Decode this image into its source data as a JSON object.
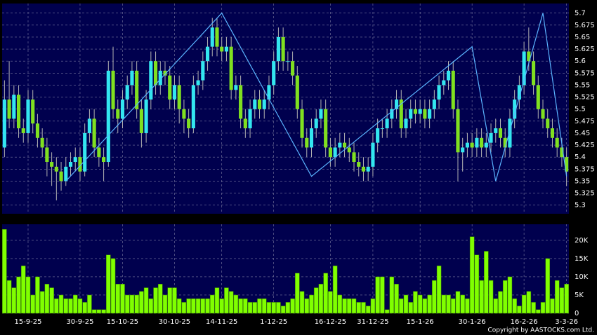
{
  "chart_data": {
    "type": "candlestick",
    "up_color": "#33e6f0",
    "down_color": "#80e020",
    "wick_color": "#b0b0b0",
    "grid": true,
    "categories": [
      null,
      null,
      null,
      null,
      null,
      "15-9-25",
      null,
      null,
      null,
      null,
      null,
      null,
      null,
      null,
      null,
      null,
      "30-9-25",
      null,
      null,
      null,
      null,
      null,
      null,
      null,
      null,
      "15-10-25",
      null,
      null,
      null,
      null,
      null,
      null,
      null,
      null,
      null,
      null,
      "30-10-25",
      null,
      null,
      null,
      null,
      null,
      null,
      null,
      null,
      null,
      "14-11-25",
      null,
      null,
      null,
      null,
      null,
      null,
      null,
      null,
      null,
      null,
      "1-12-25",
      null,
      null,
      null,
      null,
      null,
      null,
      null,
      null,
      null,
      null,
      null,
      "16-12-25",
      null,
      null,
      null,
      null,
      null,
      null,
      null,
      null,
      "31-12-25",
      null,
      null,
      null,
      null,
      null,
      null,
      null,
      null,
      null,
      "15-1-26",
      null,
      null,
      null,
      null,
      null,
      null,
      null,
      null,
      null,
      null,
      "30-1-26",
      null,
      null,
      null,
      null,
      null,
      null,
      null,
      null,
      null,
      null,
      "16-2-26",
      null,
      null,
      null,
      null,
      null,
      null,
      null,
      null,
      "3-3-26"
    ],
    "candles": [
      [
        5.42,
        5.56,
        5.4,
        5.52
      ],
      [
        5.52,
        5.6,
        5.46,
        5.48
      ],
      [
        5.48,
        5.55,
        5.46,
        5.53
      ],
      [
        5.53,
        5.55,
        5.44,
        5.46
      ],
      [
        5.46,
        5.48,
        5.43,
        5.45
      ],
      [
        5.45,
        5.54,
        5.43,
        5.52
      ],
      [
        5.52,
        5.54,
        5.45,
        5.47
      ],
      [
        5.47,
        5.49,
        5.42,
        5.44
      ],
      [
        5.44,
        5.46,
        5.4,
        5.42
      ],
      [
        5.42,
        5.44,
        5.36,
        5.39
      ],
      [
        5.39,
        5.41,
        5.34,
        5.38
      ],
      [
        5.38,
        5.4,
        5.31,
        5.37
      ],
      [
        5.37,
        5.39,
        5.33,
        5.35
      ],
      [
        5.35,
        5.4,
        5.34,
        5.38
      ],
      [
        5.38,
        5.41,
        5.36,
        5.39
      ],
      [
        5.39,
        5.42,
        5.37,
        5.4
      ],
      [
        5.4,
        5.42,
        5.35,
        5.37
      ],
      [
        5.37,
        5.47,
        5.36,
        5.45
      ],
      [
        5.45,
        5.5,
        5.43,
        5.48
      ],
      [
        5.48,
        5.5,
        5.4,
        5.42
      ],
      [
        5.42,
        5.44,
        5.38,
        5.4
      ],
      [
        5.4,
        5.42,
        5.35,
        5.39
      ],
      [
        5.39,
        5.6,
        5.38,
        5.58
      ],
      [
        5.58,
        5.63,
        5.48,
        5.5
      ],
      [
        5.5,
        5.52,
        5.45,
        5.48
      ],
      [
        5.48,
        5.54,
        5.46,
        5.52
      ],
      [
        5.52,
        5.57,
        5.5,
        5.55
      ],
      [
        5.55,
        5.6,
        5.53,
        5.58
      ],
      [
        5.58,
        5.6,
        5.48,
        5.5
      ],
      [
        5.5,
        5.52,
        5.42,
        5.45
      ],
      [
        5.45,
        5.54,
        5.43,
        5.52
      ],
      [
        5.52,
        5.62,
        5.5,
        5.6
      ],
      [
        5.6,
        5.62,
        5.53,
        5.55
      ],
      [
        5.55,
        5.6,
        5.53,
        5.58
      ],
      [
        5.58,
        5.6,
        5.55,
        5.57
      ],
      [
        5.57,
        5.59,
        5.5,
        5.52
      ],
      [
        5.52,
        5.57,
        5.5,
        5.55
      ],
      [
        5.55,
        5.57,
        5.47,
        5.5
      ],
      [
        5.5,
        5.52,
        5.45,
        5.48
      ],
      [
        5.48,
        5.5,
        5.44,
        5.46
      ],
      [
        5.46,
        5.57,
        5.45,
        5.55
      ],
      [
        5.55,
        5.58,
        5.53,
        5.56
      ],
      [
        5.56,
        5.62,
        5.54,
        5.6
      ],
      [
        5.6,
        5.65,
        5.58,
        5.63
      ],
      [
        5.63,
        5.69,
        5.61,
        5.67
      ],
      [
        5.67,
        5.69,
        5.61,
        5.63
      ],
      [
        5.63,
        5.65,
        5.6,
        5.62
      ],
      [
        5.62,
        5.65,
        5.6,
        5.63
      ],
      [
        5.63,
        5.65,
        5.52,
        5.54
      ],
      [
        5.54,
        5.57,
        5.52,
        5.55
      ],
      [
        5.55,
        5.57,
        5.46,
        5.48
      ],
      [
        5.48,
        5.5,
        5.44,
        5.46
      ],
      [
        5.46,
        5.52,
        5.44,
        5.5
      ],
      [
        5.5,
        5.54,
        5.48,
        5.52
      ],
      [
        5.52,
        5.54,
        5.48,
        5.5
      ],
      [
        5.5,
        5.54,
        5.48,
        5.52
      ],
      [
        5.52,
        5.57,
        5.5,
        5.55
      ],
      [
        5.55,
        5.62,
        5.53,
        5.6
      ],
      [
        5.6,
        5.67,
        5.58,
        5.65
      ],
      [
        5.65,
        5.67,
        5.58,
        5.6
      ],
      [
        5.6,
        5.62,
        5.58,
        5.6
      ],
      [
        5.6,
        5.62,
        5.55,
        5.57
      ],
      [
        5.57,
        5.59,
        5.48,
        5.5
      ],
      [
        5.5,
        5.52,
        5.42,
        5.44
      ],
      [
        5.44,
        5.46,
        5.4,
        5.42
      ],
      [
        5.42,
        5.48,
        5.4,
        5.46
      ],
      [
        5.46,
        5.5,
        5.44,
        5.48
      ],
      [
        5.48,
        5.52,
        5.46,
        5.5
      ],
      [
        5.5,
        5.52,
        5.4,
        5.42
      ],
      [
        5.42,
        5.44,
        5.38,
        5.4
      ],
      [
        5.4,
        5.44,
        5.38,
        5.42
      ],
      [
        5.42,
        5.45,
        5.4,
        5.43
      ],
      [
        5.43,
        5.45,
        5.4,
        5.42
      ],
      [
        5.42,
        5.44,
        5.39,
        5.41
      ],
      [
        5.41,
        5.43,
        5.37,
        5.39
      ],
      [
        5.39,
        5.41,
        5.36,
        5.38
      ],
      [
        5.38,
        5.4,
        5.35,
        5.37
      ],
      [
        5.37,
        5.4,
        5.35,
        5.38
      ],
      [
        5.38,
        5.45,
        5.36,
        5.43
      ],
      [
        5.43,
        5.48,
        5.41,
        5.46
      ],
      [
        5.46,
        5.48,
        5.44,
        5.46
      ],
      [
        5.46,
        5.5,
        5.44,
        5.48
      ],
      [
        5.48,
        5.52,
        5.46,
        5.5
      ],
      [
        5.5,
        5.54,
        5.48,
        5.52
      ],
      [
        5.52,
        5.54,
        5.44,
        5.46
      ],
      [
        5.46,
        5.5,
        5.44,
        5.48
      ],
      [
        5.48,
        5.52,
        5.46,
        5.5
      ],
      [
        5.5,
        5.52,
        5.47,
        5.49
      ],
      [
        5.49,
        5.52,
        5.47,
        5.5
      ],
      [
        5.5,
        5.52,
        5.46,
        5.48
      ],
      [
        5.48,
        5.52,
        5.46,
        5.5
      ],
      [
        5.5,
        5.54,
        5.48,
        5.52
      ],
      [
        5.52,
        5.57,
        5.5,
        5.55
      ],
      [
        5.55,
        5.58,
        5.53,
        5.56
      ],
      [
        5.56,
        5.6,
        5.54,
        5.58
      ],
      [
        5.58,
        5.6,
        5.48,
        5.5
      ],
      [
        5.5,
        5.52,
        5.35,
        5.41
      ],
      [
        5.41,
        5.44,
        5.37,
        5.42
      ],
      [
        5.42,
        5.45,
        5.4,
        5.43
      ],
      [
        5.43,
        5.45,
        5.4,
        5.42
      ],
      [
        5.42,
        5.46,
        5.4,
        5.44
      ],
      [
        5.44,
        5.46,
        5.4,
        5.42
      ],
      [
        5.42,
        5.45,
        5.4,
        5.43
      ],
      [
        5.43,
        5.47,
        5.41,
        5.45
      ],
      [
        5.45,
        5.48,
        5.43,
        5.46
      ],
      [
        5.46,
        5.48,
        5.42,
        5.44
      ],
      [
        5.44,
        5.46,
        5.4,
        5.42
      ],
      [
        5.42,
        5.5,
        5.4,
        5.48
      ],
      [
        5.48,
        5.54,
        5.46,
        5.52
      ],
      [
        5.52,
        5.57,
        5.5,
        5.55
      ],
      [
        5.55,
        5.64,
        5.53,
        5.62
      ],
      [
        5.62,
        5.67,
        5.58,
        5.6
      ],
      [
        5.6,
        5.62,
        5.53,
        5.55
      ],
      [
        5.55,
        5.57,
        5.48,
        5.5
      ],
      [
        5.5,
        5.52,
        5.46,
        5.48
      ],
      [
        5.48,
        5.5,
        5.44,
        5.46
      ],
      [
        5.46,
        5.48,
        5.42,
        5.44
      ],
      [
        5.44,
        5.46,
        5.4,
        5.42
      ],
      [
        5.42,
        5.44,
        5.38,
        5.4
      ],
      [
        5.4,
        5.42,
        5.34,
        5.37
      ]
    ],
    "ylim": [
      5.282,
      5.72
    ],
    "yticks": [
      5.3,
      5.325,
      5.35,
      5.375,
      5.4,
      5.425,
      5.45,
      5.475,
      5.5,
      5.525,
      5.55,
      5.575,
      5.6,
      5.625,
      5.65,
      5.675,
      5.7
    ],
    "zigzag": {
      "color": "#5ab4ff",
      "x": [
        13,
        46,
        65,
        99,
        104,
        114,
        119
      ],
      "values": [
        5.35,
        5.7,
        5.36,
        5.63,
        5.35,
        5.7,
        5.36
      ]
    },
    "volume": {
      "type": "bar",
      "color": "#80ff00",
      "values": [
        23000,
        9000,
        7000,
        10000,
        13000,
        10000,
        5000,
        10000,
        6000,
        8000,
        7000,
        4000,
        5000,
        4000,
        4000,
        5000,
        4000,
        3000,
        5000,
        1000,
        1000,
        1000,
        16000,
        15000,
        8000,
        8000,
        5000,
        5000,
        5000,
        6000,
        7000,
        4000,
        7000,
        8000,
        5000,
        7000,
        7000,
        4000,
        3000,
        4000,
        4000,
        4000,
        4000,
        4000,
        5000,
        7000,
        4000,
        7000,
        6000,
        5000,
        4000,
        4000,
        3000,
        3000,
        4000,
        4000,
        3000,
        3000,
        3000,
        2000,
        3000,
        4000,
        11000,
        6000,
        4000,
        5000,
        7000,
        8000,
        11000,
        6000,
        13000,
        5000,
        4000,
        4000,
        4000,
        3000,
        3000,
        2000,
        4000,
        10000,
        10000,
        1000,
        10000,
        8000,
        4000,
        5000,
        3000,
        6000,
        5000,
        4000,
        5000,
        9000,
        13000,
        5000,
        5000,
        4000,
        6000,
        5000,
        4000,
        21000,
        16000,
        9000,
        17000,
        9000,
        4000,
        6000,
        9000,
        10000,
        4000,
        2000,
        5000,
        6000,
        3000,
        1000,
        3000,
        15000,
        4000,
        9000,
        7000,
        8000
      ],
      "ylim": [
        0,
        24400
      ],
      "yticks": [
        0,
        {
          "value": 5000,
          "label": "5K"
        },
        {
          "value": 10000,
          "label": "10K"
        },
        {
          "value": 15000,
          "label": "15K"
        },
        {
          "value": 20000,
          "label": "20K"
        }
      ]
    }
  },
  "footer": "Copyright by AASTOCKS.com Ltd."
}
